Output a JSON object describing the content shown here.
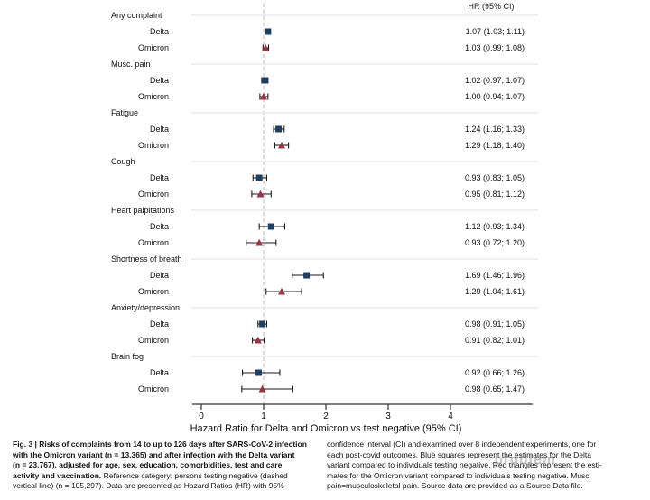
{
  "figure": {
    "hr_column_header": "HR (95% CI)",
    "x_axis_title": "Hazard Ratio for Delta and Omicron vs test negative (95% CI)",
    "x_tick_labels": [
      "0",
      "1",
      "2",
      "3",
      "4"
    ]
  },
  "chart_data": {
    "type": "forest",
    "title": "",
    "xlabel": "Hazard Ratio for Delta and Omicron vs test negative (95% CI)",
    "column_header": "HR (95% CI)",
    "xlim": [
      0,
      5.3
    ],
    "x_ticks": [
      0,
      1,
      2,
      3,
      4
    ],
    "reference_line_x": 1,
    "reference_line_style": "dashed",
    "legend": {
      "delta_marker": "blue-square",
      "omicron_marker": "red-triangle"
    },
    "colors": {
      "delta_square": "#1e3f63",
      "omicron_triangle": "#993344",
      "error_bar": "#1a1a1a",
      "reference_line": "#b8b8b8",
      "separator": "#ebebeb",
      "axis": "#333333"
    },
    "groups": [
      {
        "category": "Any complaint",
        "rows": [
          {
            "variant": "Delta",
            "hr": 1.07,
            "ci_low": 1.03,
            "ci_high": 1.11,
            "text": "1.07 (1.03; 1.11)"
          },
          {
            "variant": "Omicron",
            "hr": 1.03,
            "ci_low": 0.99,
            "ci_high": 1.08,
            "text": "1.03 (0.99; 1.08)"
          }
        ]
      },
      {
        "category": "Musc. pain",
        "rows": [
          {
            "variant": "Delta",
            "hr": 1.02,
            "ci_low": 0.97,
            "ci_high": 1.07,
            "text": "1.02 (0.97; 1.07)"
          },
          {
            "variant": "Omicron",
            "hr": 1.0,
            "ci_low": 0.94,
            "ci_high": 1.07,
            "text": "1.00 (0.94; 1.07)"
          }
        ]
      },
      {
        "category": "Fatigue",
        "rows": [
          {
            "variant": "Delta",
            "hr": 1.24,
            "ci_low": 1.16,
            "ci_high": 1.33,
            "text": "1.24 (1.16; 1.33)"
          },
          {
            "variant": "Omicron",
            "hr": 1.29,
            "ci_low": 1.18,
            "ci_high": 1.4,
            "text": "1.29 (1.18; 1.40)"
          }
        ]
      },
      {
        "category": "Cough",
        "rows": [
          {
            "variant": "Delta",
            "hr": 0.93,
            "ci_low": 0.83,
            "ci_high": 1.05,
            "text": "0.93 (0.83; 1.05)"
          },
          {
            "variant": "Omicron",
            "hr": 0.95,
            "ci_low": 0.81,
            "ci_high": 1.12,
            "text": "0.95 (0.81; 1.12)"
          }
        ]
      },
      {
        "category": "Heart palpitations",
        "rows": [
          {
            "variant": "Delta",
            "hr": 1.12,
            "ci_low": 0.93,
            "ci_high": 1.34,
            "text": "1.12 (0.93; 1.34)"
          },
          {
            "variant": "Omicron",
            "hr": 0.93,
            "ci_low": 0.72,
            "ci_high": 1.2,
            "text": "0.93 (0.72; 1.20)"
          }
        ]
      },
      {
        "category": "Shortness of breath",
        "rows": [
          {
            "variant": "Delta",
            "hr": 1.69,
            "ci_low": 1.46,
            "ci_high": 1.96,
            "text": "1.69 (1.46; 1.96)"
          },
          {
            "variant": "Omicron",
            "hr": 1.29,
            "ci_low": 1.04,
            "ci_high": 1.61,
            "text": "1.29 (1.04; 1.61)"
          }
        ]
      },
      {
        "category": "Anxiety/depression",
        "rows": [
          {
            "variant": "Delta",
            "hr": 0.98,
            "ci_low": 0.91,
            "ci_high": 1.05,
            "text": "0.98 (0.91; 1.05)"
          },
          {
            "variant": "Omicron",
            "hr": 0.91,
            "ci_low": 0.82,
            "ci_high": 1.01,
            "text": "0.91 (0.82; 1.01)"
          }
        ]
      },
      {
        "category": "Brain fog",
        "rows": [
          {
            "variant": "Delta",
            "hr": 0.92,
            "ci_low": 0.66,
            "ci_high": 1.26,
            "text": "0.92 (0.66; 1.26)"
          },
          {
            "variant": "Omicron",
            "hr": 0.98,
            "ci_low": 0.65,
            "ci_high": 1.47,
            "text": "0.98 (0.65; 1.47)"
          }
        ]
      }
    ]
  },
  "caption": {
    "left_lines": [
      [
        {
          "text": "Fig. 3 | Risks of complaints from 14 to up to 126 days after SARS-CoV-2 infection",
          "bold": true
        }
      ],
      [
        {
          "text": "with the Omicron variant (n = 13,365) and after infection with the Delta variant",
          "bold": true
        }
      ],
      [
        {
          "text": "(n = 23,767), adjusted for age, sex, education, comorbidities, test and care",
          "bold": true
        }
      ],
      [
        {
          "text": "activity and vaccination. ",
          "bold": true
        },
        {
          "text": "Reference category: persons testing negative (dashed",
          "bold": false
        }
      ],
      [
        {
          "text": "vertical line) (n = 105,297). Data are presented as Hazard Ratios (HR) with 95%",
          "bold": false
        }
      ]
    ],
    "right_lines": [
      [
        {
          "text": "confidence interval (CI) and examined over 8 independent experiments, one for",
          "bold": false
        }
      ],
      [
        {
          "text": "each post-covid outcomes. Blue squares represent the estimates for the Delta",
          "bold": false
        }
      ],
      [
        {
          "text": "variant compared to individuals testing negative. Red triangles represent the esti-",
          "bold": false
        }
      ],
      [
        {
          "text": "mates for the Omicron variant compared to individuals testing negative. Musc.",
          "bold": false
        }
      ],
      [
        {
          "text": "pain=musculoskeletal pain. Source data are provided as a Source Data file.",
          "bold": false
        }
      ]
    ]
  },
  "watermark": {
    "text": "problem"
  }
}
